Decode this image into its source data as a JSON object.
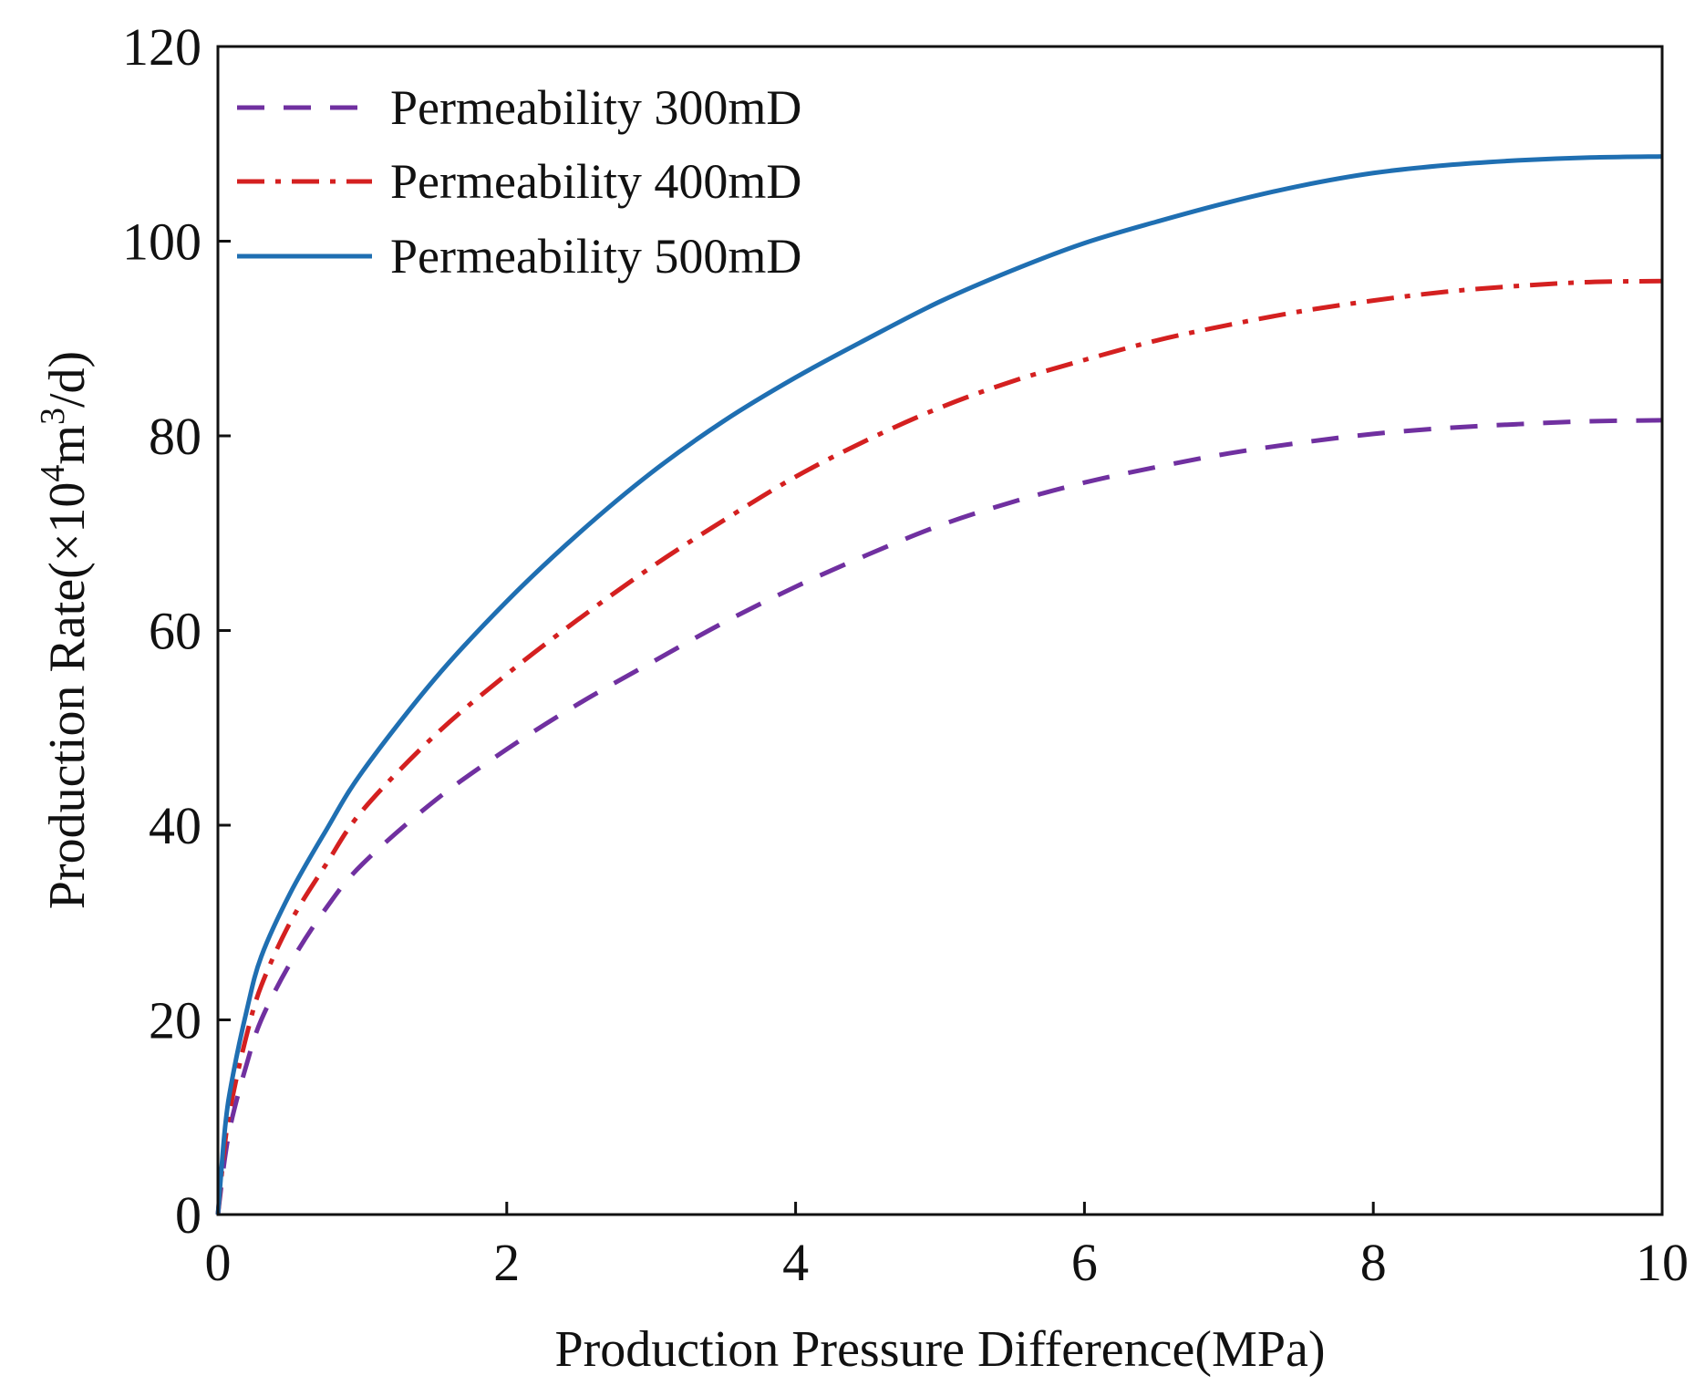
{
  "chart_data": {
    "type": "line",
    "title": "",
    "xlabel": "Production Pressure Difference(MPa)",
    "ylabel": {
      "prefix": "Production Rate(×10",
      "sup1": "4",
      "mid": "m",
      "sup2": "3",
      "suffix": "/d)"
    },
    "xlim": [
      0,
      10
    ],
    "ylim": [
      0,
      120
    ],
    "xticks": [
      0,
      2,
      4,
      6,
      8,
      10
    ],
    "yticks": [
      0,
      20,
      40,
      60,
      80,
      100,
      120
    ],
    "grid": false,
    "legend_position": "top-left",
    "x": [
      0,
      0.05,
      0.1,
      0.2,
      0.3,
      0.5,
      0.75,
      1,
      1.5,
      2,
      2.5,
      3,
      3.5,
      4,
      4.5,
      5,
      5.5,
      6,
      6.5,
      7,
      7.5,
      8,
      8.5,
      9,
      9.5,
      10
    ],
    "series": [
      {
        "name": "Permeability 300mD",
        "color": "#7030A0",
        "style": "dashed",
        "values": [
          0,
          6,
          10,
          15.5,
          20,
          25.8,
          31.5,
          36,
          42.5,
          47.8,
          52.5,
          56.7,
          60.8,
          64.5,
          67.8,
          70.8,
          73.2,
          75.2,
          76.8,
          78.2,
          79.3,
          80.2,
          80.8,
          81.2,
          81.5,
          81.6
        ]
      },
      {
        "name": "Permeability 400mD",
        "color": "#D42020",
        "style": "dashdot",
        "values": [
          0,
          7.5,
          12,
          18.5,
          23.5,
          30,
          36,
          41.5,
          49.2,
          55.5,
          61.2,
          66.5,
          71.3,
          75.8,
          79.6,
          82.9,
          85.6,
          87.8,
          89.8,
          91.4,
          92.8,
          93.9,
          94.8,
          95.4,
          95.8,
          95.9
        ]
      },
      {
        "name": "Permeability 500mD",
        "color": "#1F6FB2",
        "style": "solid",
        "values": [
          0,
          9,
          14,
          21,
          26.5,
          33,
          39.5,
          45.5,
          55,
          63,
          70,
          76.2,
          81.5,
          86,
          90,
          93.8,
          97,
          99.8,
          102,
          104,
          105.7,
          107,
          107.8,
          108.3,
          108.6,
          108.7
        ]
      }
    ]
  }
}
